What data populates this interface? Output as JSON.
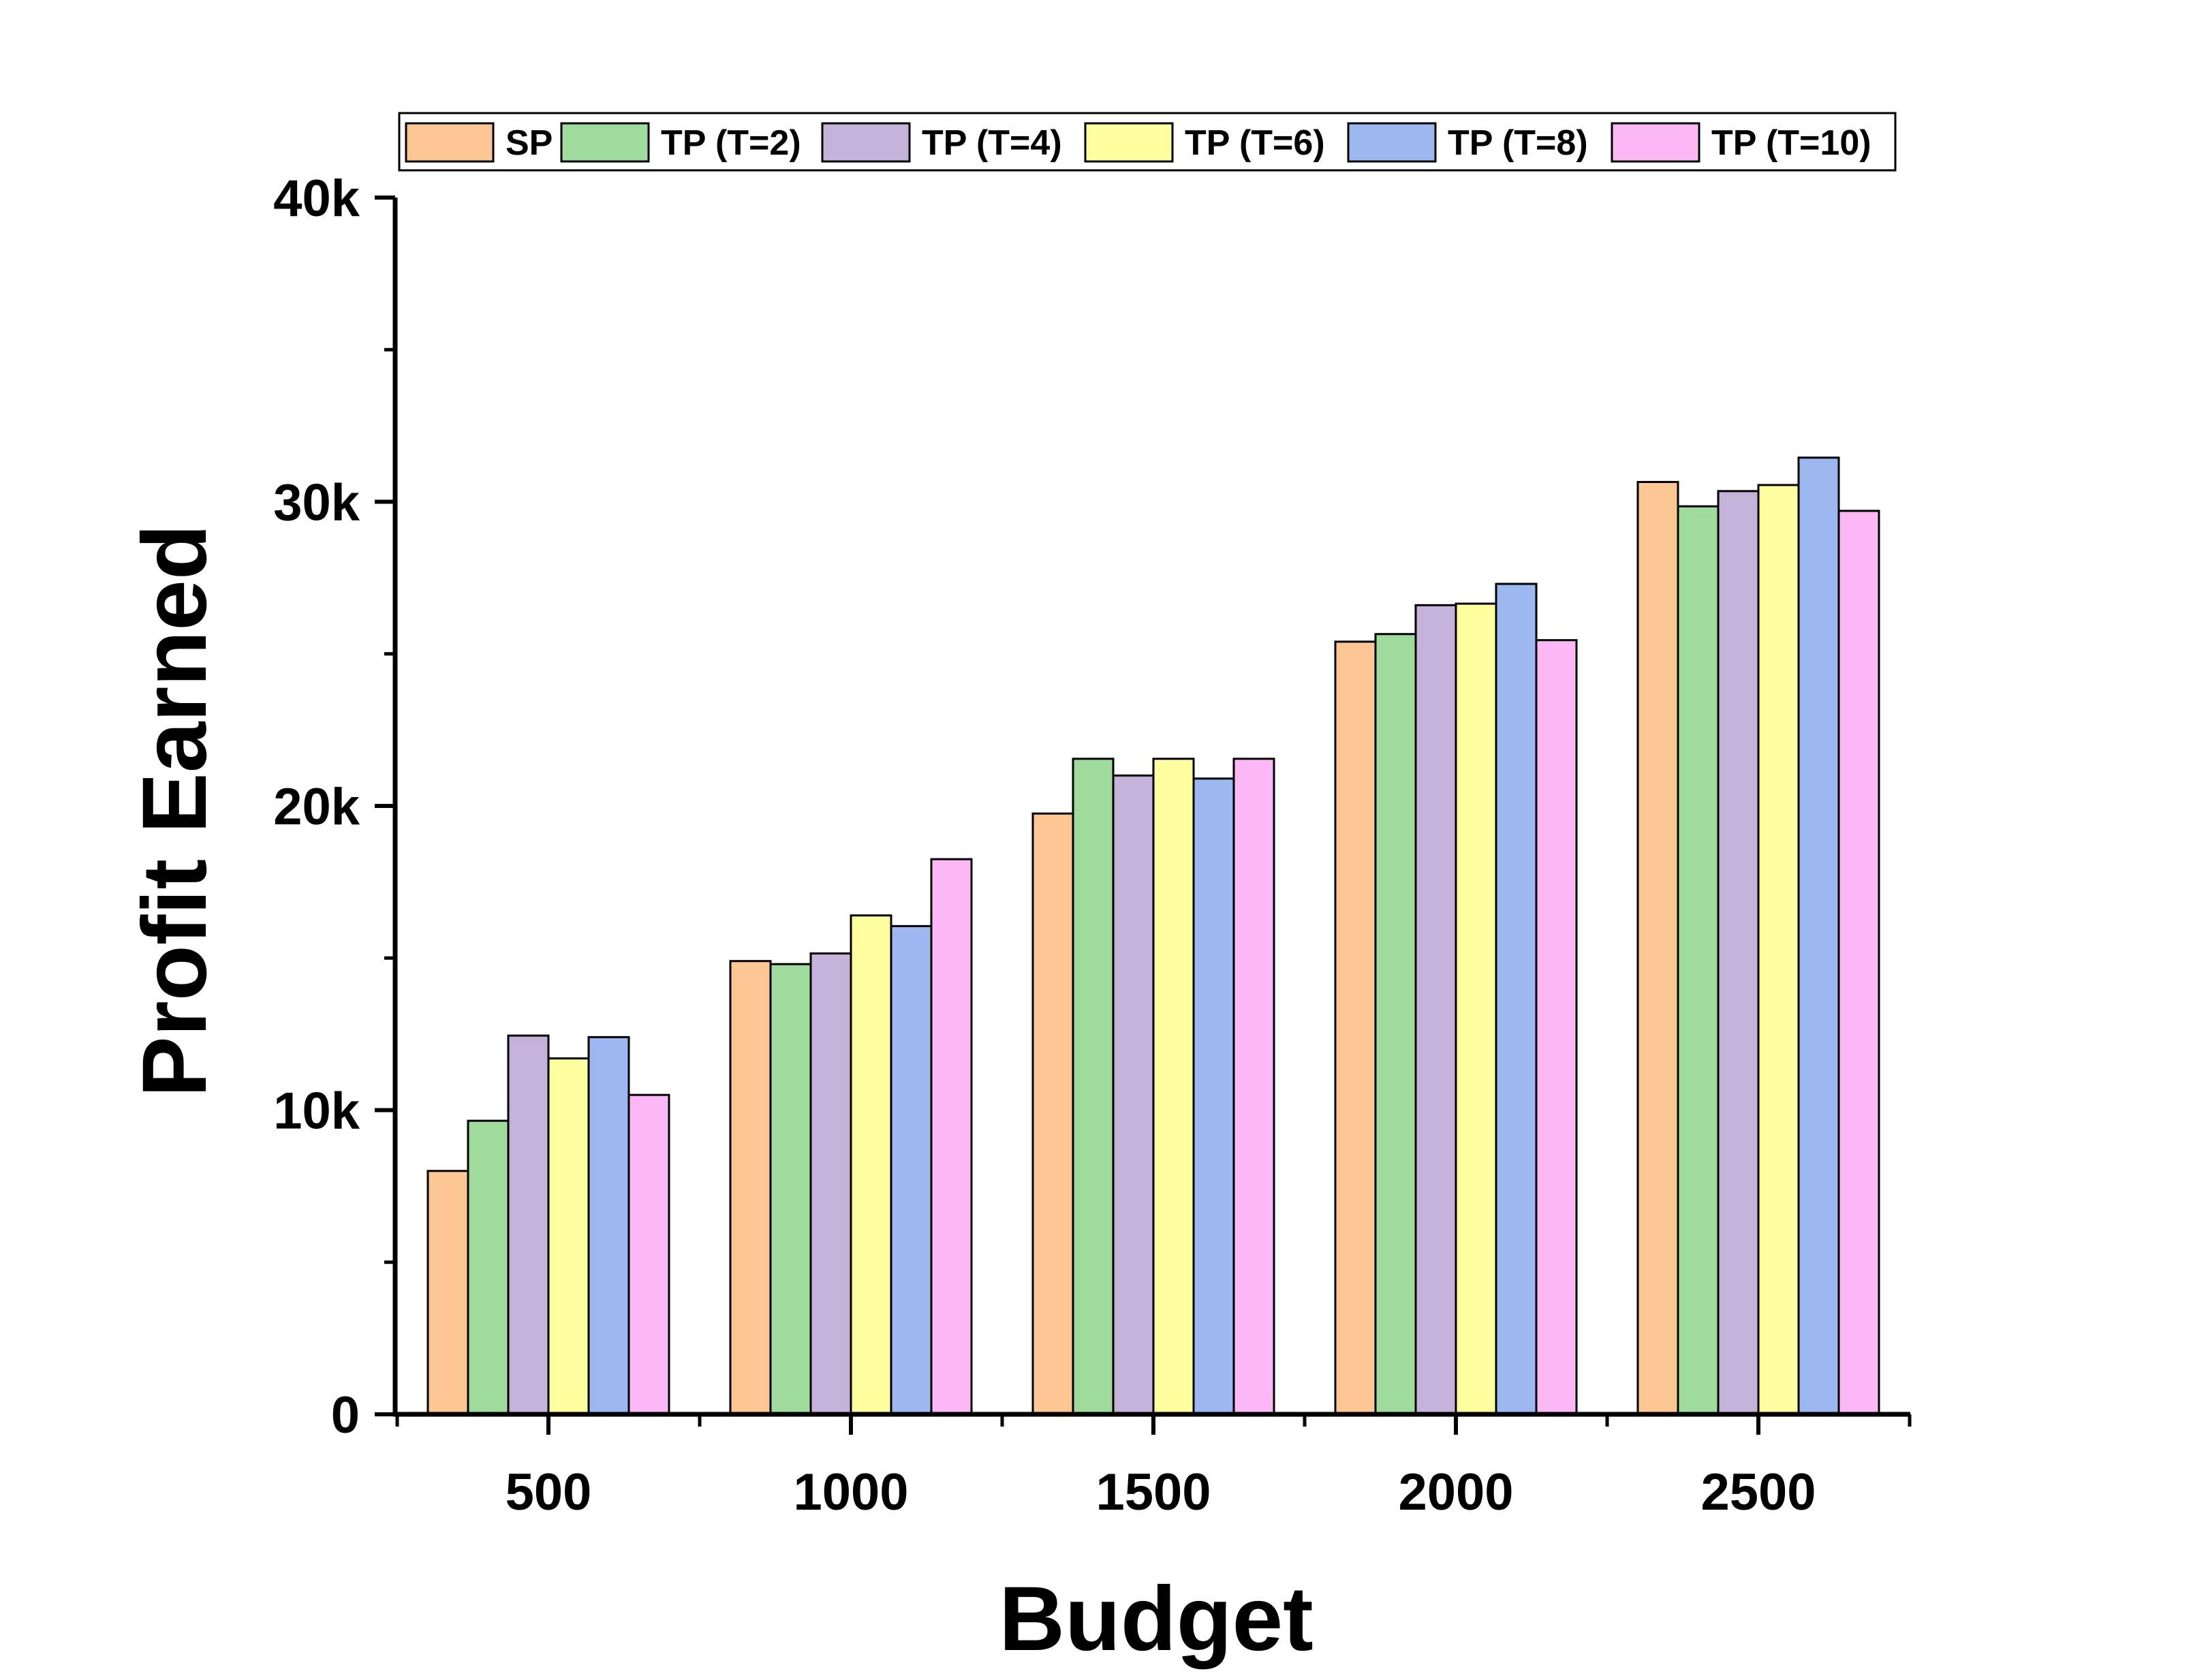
{
  "chart_data": {
    "type": "bar",
    "title": "",
    "xlabel": "Budget",
    "ylabel": "Profit Earned",
    "categories": [
      "500",
      "1000",
      "1500",
      "2000",
      "2500"
    ],
    "ylim": [
      0,
      40000
    ],
    "yticks": [
      {
        "value": 0,
        "label": "0"
      },
      {
        "value": 10000,
        "label": "10k"
      },
      {
        "value": 20000,
        "label": "20k"
      },
      {
        "value": 30000,
        "label": "30k"
      },
      {
        "value": 40000,
        "label": "40k"
      }
    ],
    "grid": false,
    "legend_position": "top",
    "series": [
      {
        "name": "SP",
        "color": "#fdc793",
        "values": [
          8000,
          14900,
          19750,
          25400,
          30650
        ]
      },
      {
        "name": "TP (T=2)",
        "color": "#9edb9c",
        "values": [
          9650,
          14800,
          21550,
          25650,
          29850
        ]
      },
      {
        "name": "TP (T=4)",
        "color": "#c5b2d8",
        "values": [
          12450,
          15150,
          21000,
          26600,
          30350
        ]
      },
      {
        "name": "TP (T=6)",
        "color": "#fefe9e",
        "values": [
          11700,
          16400,
          21550,
          26650,
          30550
        ]
      },
      {
        "name": "TP (T=8)",
        "color": "#9db8f0",
        "values": [
          12400,
          16050,
          20900,
          27300,
          31450
        ]
      },
      {
        "name": "TP (T=10)",
        "color": "#fcb8f5",
        "values": [
          10500,
          18250,
          21550,
          25450,
          29700
        ]
      }
    ]
  }
}
